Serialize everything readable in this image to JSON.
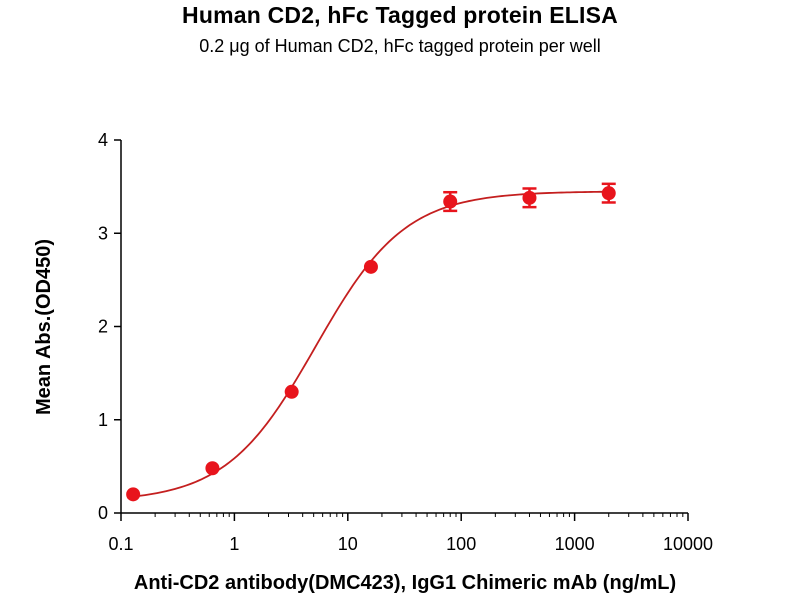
{
  "chart_data": {
    "type": "scatter",
    "title": "Human CD2, hFc Tagged protein ELISA",
    "subtitle": "0.2 μg of Human CD2, hFc tagged protein per well",
    "xlabel": "Anti-CD2 antibody(DMC423), IgG1 Chimeric mAb (ng/mL)",
    "ylabel": "Mean Abs.(OD450)",
    "x_scale": "log",
    "xlim": [
      0.1,
      10000
    ],
    "ylim": [
      0,
      4
    ],
    "x_ticks": [
      0.1,
      1,
      10,
      100,
      1000,
      10000
    ],
    "x_tick_labels": [
      "0.1",
      "1",
      "10",
      "100",
      "1000",
      "10000"
    ],
    "y_ticks": [
      0,
      1,
      2,
      3,
      4
    ],
    "y_tick_labels": [
      "0",
      "1",
      "2",
      "3",
      "4"
    ],
    "grid": false,
    "color": "#e8141c",
    "curve_color": "#c41f1f",
    "points": [
      {
        "x": 0.128,
        "y": 0.2,
        "err": 0.02
      },
      {
        "x": 0.64,
        "y": 0.48,
        "err": 0.02
      },
      {
        "x": 3.2,
        "y": 1.3,
        "err": 0.02
      },
      {
        "x": 16,
        "y": 2.64,
        "err": 0.03
      },
      {
        "x": 80,
        "y": 3.34,
        "err": 0.1
      },
      {
        "x": 400,
        "y": 3.38,
        "err": 0.1
      },
      {
        "x": 2000,
        "y": 3.43,
        "err": 0.1
      }
    ],
    "fit": {
      "model": "4PL",
      "bottom": 0.12,
      "top": 3.45,
      "ec50": 5.2,
      "hill": 1.1
    }
  }
}
